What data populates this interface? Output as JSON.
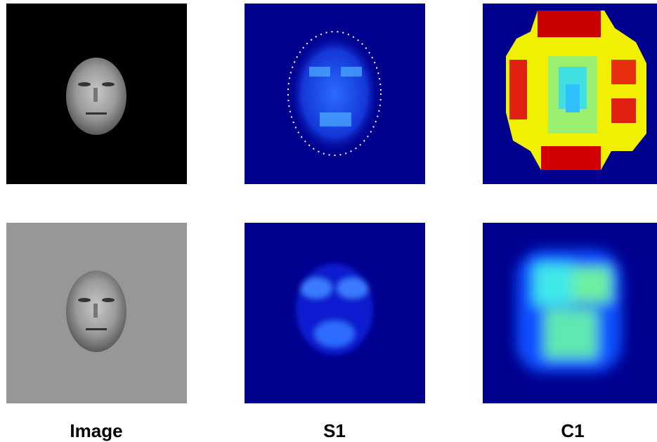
{
  "labels": [
    "Image",
    "S1",
    "C1"
  ]
}
